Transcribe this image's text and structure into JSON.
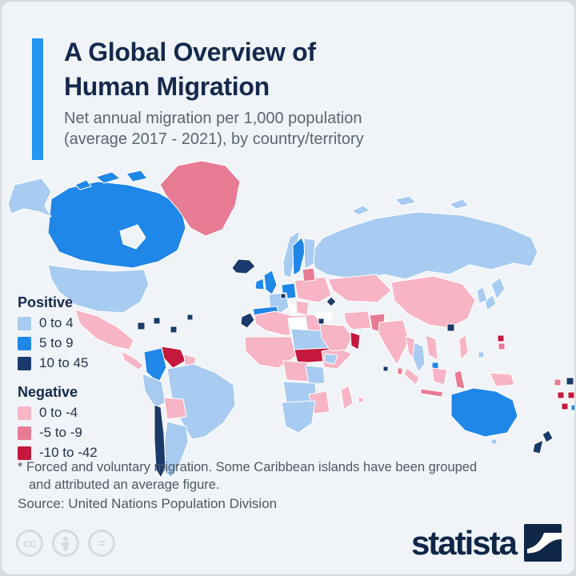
{
  "header": {
    "title_line1": "A Global Overview of",
    "title_line2": "Human Migration",
    "subtitle_line1": "Net annual migration per 1,000 population",
    "subtitle_line2": "(average 2017 - 2021), by country/territory",
    "accent_color": "#2196f3"
  },
  "legend": {
    "positive": {
      "label": "Positive",
      "items": [
        {
          "label": "0 to 4",
          "color": "#a7cbf1"
        },
        {
          "label": "5 to 9",
          "color": "#1f87e8"
        },
        {
          "label": "10 to 45",
          "color": "#1a3a6b"
        }
      ]
    },
    "negative": {
      "label": "Negative",
      "items": [
        {
          "label": "0 to -4",
          "color": "#f6b4c4"
        },
        {
          "label": "-5 to -9",
          "color": "#e87b94"
        },
        {
          "label": "-10 to -42",
          "color": "#c4183c"
        }
      ]
    }
  },
  "footnote_line1": "* Forced and voluntary migration. Some Caribbean islands have been grouped",
  "footnote_line2": "and attributed an average figure.",
  "source": "Source: United Nations Population Division",
  "branding": {
    "logo_text": "statista"
  },
  "chart_data": {
    "type": "heatmap",
    "title": "A Global Overview of Human Migration",
    "subtitle": "Net annual migration per 1,000 population (average 2017 - 2021), by country/territory",
    "buckets": {
      "pos1": {
        "label": "0 to 4",
        "color": "#a7cbf1"
      },
      "pos2": {
        "label": "5 to 9",
        "color": "#1f87e8"
      },
      "pos3": {
        "label": "10 to 45",
        "color": "#1a3a6b"
      },
      "neg1": {
        "label": "0 to -4",
        "color": "#f6b4c4"
      },
      "neg2": {
        "label": "-5 to -9",
        "color": "#e87b94"
      },
      "neg3": {
        "label": "-10 to -42",
        "color": "#c4183c"
      },
      "white": {
        "color": "#fdfeff"
      },
      "water": {
        "color": "#f0f3f7"
      }
    },
    "regions": {
      "alaska": "pos1",
      "canada": "pos2",
      "hudson-bay": "water",
      "usa": "pos1",
      "greenland": "neg2",
      "iceland": "pos3",
      "mexico": "neg1",
      "central-america": "neg1",
      "caribbean": "pos3",
      "colombia": "pos2",
      "venezuela": "neg3",
      "guyanas": "neg1",
      "brazil": "pos1",
      "peru": "pos1",
      "bolivia": "neg1",
      "chile": "pos3",
      "argentina": "pos1",
      "norway": "pos1",
      "sweden": "pos2",
      "finland": "pos1",
      "uk": "pos2",
      "ireland": "pos2",
      "germany": "pos2",
      "france": "pos1",
      "spain": "pos2",
      "italy": "white",
      "poland-east-europe": "neg1",
      "baltics": "neg2",
      "balkans": "neg1",
      "luxembourg": "pos3",
      "malta": "pos3",
      "turkey": "white",
      "russia": "pos1",
      "north-africa": "neg1",
      "libya": "white",
      "western-sahara": "pos3",
      "sahel-west-africa": "neg1",
      "chad-sudan": "pos1",
      "car-south-sudan": "neg3",
      "kenya-somalia": "neg1",
      "ethiopia": "pos1",
      "drc": "neg1",
      "tanzania": "pos1",
      "angola-zambia": "pos1",
      "zimbabwe-mozambique": "neg1",
      "southern-africa": "pos1",
      "madagascar": "neg1",
      "mauritius": "neg1",
      "saudi-arabia": "neg1",
      "oman": "neg3",
      "lebanon": "pos3",
      "armenia": "pos3",
      "iran": "neg1",
      "pakistan": "neg2",
      "central-asia": "neg1",
      "china": "neg1",
      "india": "neg1",
      "sri-lanka": "neg2",
      "maldives": "pos3",
      "myanmar": "neg1",
      "thailand": "pos1",
      "vietnam": "neg1",
      "singapore": "pos2",
      "sumatra": "neg1",
      "java": "neg2",
      "borneo": "neg1",
      "sulawesi": "neg2",
      "philippines": "neg1",
      "hong-kong": "pos3",
      "japan": "pos1",
      "south-korea": "pos1",
      "papua-new-guinea": "neg1",
      "palau": "pos1",
      "australia": "pos2",
      "tasmania": "pos1",
      "new-zealand": "pos3",
      "micronesia-red": "neg3",
      "micronesia-rose": "neg2",
      "pacific-navy": "pos3",
      "pacific-rose": "neg2",
      "pacific-red-1": "neg3",
      "pacific-red-2": "neg3",
      "pacific-red-3": "neg3",
      "fiji": "pos2"
    }
  }
}
